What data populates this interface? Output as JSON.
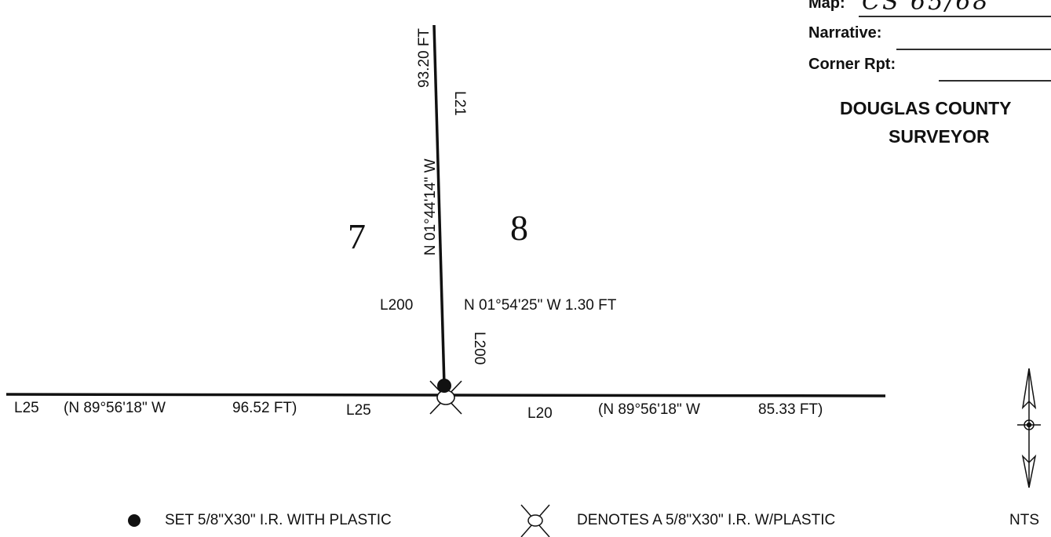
{
  "stamp": {
    "map_label": "Map:",
    "map_value": "CS 65/68",
    "narrative_label": "Narrative:",
    "corner_label": "Corner Rpt:",
    "office_line1": "DOUGLAS COUNTY",
    "office_line2": "SURVEYOR"
  },
  "lots": {
    "west": "7",
    "east": "8"
  },
  "lines": {
    "l21_bearing": "N 01°44'14\" W",
    "l21_distance": "93.20 FT",
    "l21_label": "L21",
    "l200_label_left": "L200",
    "l200_bearing": "N 01°54'25\" W  1.30 FT",
    "l200_label_vertical": "L200",
    "l25_label": "L25",
    "l25_record": "(N 89°56'18\" W",
    "l25_distance": "96.52 FT)",
    "l25_label_center": "L25",
    "l20_label": "L20",
    "l20_record": "(N 89°56'18\" W",
    "l20_distance": "85.33 FT)"
  },
  "legend": {
    "set_pin": "SET 5/8\"X30\" I.R. WITH PLASTIC",
    "found_pin": "DENOTES A 5/8\"X30\" I.R. W/PLASTIC",
    "scale": "NTS"
  },
  "icons": {
    "set_pin": "filled-circle-icon",
    "found_pin": "crossed-circle-icon",
    "north": "north-arrow-icon"
  }
}
